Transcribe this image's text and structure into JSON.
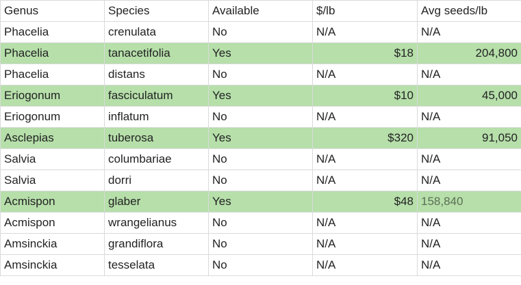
{
  "sheet": {
    "headers": [
      "Genus",
      "Species",
      "Available",
      "$/lb",
      "Avg seeds/lb"
    ],
    "highlight_color": "#b6dfaa",
    "rows": [
      {
        "genus": "Phacelia",
        "species": "crenulata",
        "available": "No",
        "price": "N/A",
        "seeds": "N/A"
      },
      {
        "genus": "Phacelia",
        "species": "tanacetifolia",
        "available": "Yes",
        "price": "$18",
        "seeds": "204,800"
      },
      {
        "genus": "Phacelia",
        "species": "distans",
        "available": "No",
        "price": "N/A",
        "seeds": "N/A"
      },
      {
        "genus": "Eriogonum",
        "species": "fasciculatum",
        "available": "Yes",
        "price": "$10",
        "seeds": "45,000"
      },
      {
        "genus": "Eriogonum",
        "species": "inflatum",
        "available": "No",
        "price": "N/A",
        "seeds": "N/A"
      },
      {
        "genus": "Asclepias",
        "species": "tuberosa",
        "available": "Yes",
        "price": "$320",
        "seeds": "91,050"
      },
      {
        "genus": "Salvia",
        "species": "columbariae",
        "available": "No",
        "price": "N/A",
        "seeds": "N/A"
      },
      {
        "genus": "Salvia",
        "species": "dorri",
        "available": "No",
        "price": "N/A",
        "seeds": "N/A"
      },
      {
        "genus": "Acmispon",
        "species": "glaber",
        "available": "Yes",
        "price": "$48",
        "seeds": "158,840"
      },
      {
        "genus": "Acmispon",
        "species": "wrangelianus",
        "available": "No",
        "price": "N/A",
        "seeds": "N/A"
      },
      {
        "genus": "Amsinckia",
        "species": "grandiflora",
        "available": "No",
        "price": "N/A",
        "seeds": "N/A"
      },
      {
        "genus": "Amsinckia",
        "species": "tesselata",
        "available": "No",
        "price": "N/A",
        "seeds": "N/A"
      }
    ]
  }
}
